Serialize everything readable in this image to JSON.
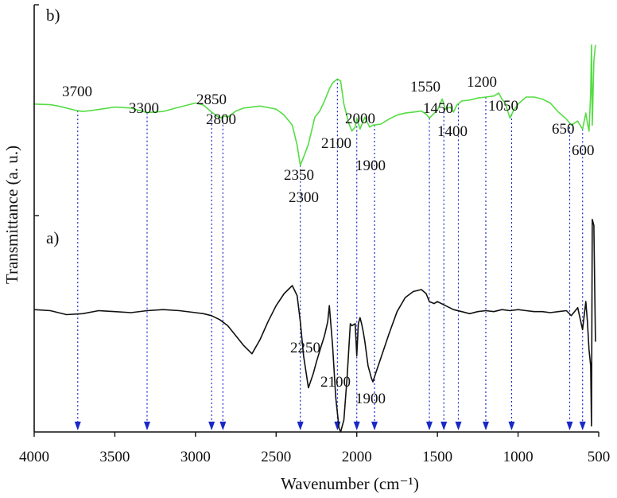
{
  "chart_data": {
    "type": "line",
    "xlabel": "Wavenumber (cm⁻¹)",
    "ylabel": "Transmittance (a. u.)",
    "xlim": [
      4000,
      500
    ],
    "x_ticks": [
      4000,
      3500,
      3000,
      2500,
      2000,
      1500,
      1000,
      500
    ],
    "grid": false,
    "legend": "none",
    "series": [
      {
        "name": "b)",
        "color": "#55dd44",
        "x": [
          4000,
          3900,
          3850,
          3800,
          3750,
          3700,
          3650,
          3600,
          3500,
          3400,
          3300,
          3200,
          3100,
          3000,
          2950,
          2900,
          2850,
          2820,
          2800,
          2750,
          2700,
          2600,
          2500,
          2450,
          2400,
          2370,
          2350,
          2330,
          2300,
          2260,
          2230,
          2200,
          2170,
          2150,
          2120,
          2100,
          2080,
          2050,
          2030,
          2010,
          2000,
          1980,
          1960,
          1950,
          1920,
          1900,
          1850,
          1800,
          1750,
          1700,
          1650,
          1600,
          1570,
          1550,
          1500,
          1470,
          1450,
          1420,
          1400,
          1380,
          1350,
          1300,
          1250,
          1200,
          1150,
          1120,
          1100,
          1080,
          1050,
          1030,
          1000,
          950,
          900,
          850,
          800,
          750,
          700,
          670,
          650,
          630,
          600,
          580,
          570,
          560,
          550,
          545,
          540,
          530,
          520
        ],
        "y": [
          49.5,
          49.8,
          50.5,
          51.5,
          52.5,
          53.2,
          52.8,
          52.2,
          51,
          51.5,
          53.8,
          53.2,
          51,
          49,
          50,
          53.5,
          56.5,
          55.5,
          56,
          53,
          51.5,
          50.5,
          52,
          55,
          60,
          70,
          80,
          76,
          69.5,
          56,
          53,
          48,
          42,
          39,
          37,
          38,
          49.5,
          59,
          63,
          61,
          56.5,
          62,
          58,
          56,
          61,
          60,
          59.5,
          57,
          55,
          54,
          53.5,
          53,
          54.5,
          56.5,
          52.5,
          47,
          52,
          51,
          53.5,
          50,
          48,
          47.5,
          46.5,
          46,
          45.5,
          44,
          47,
          49,
          56.5,
          53,
          49.5,
          46,
          46,
          47,
          49,
          53.5,
          57,
          60,
          59,
          58,
          62,
          54,
          59,
          63,
          44,
          20,
          60,
          28,
          20
        ]
      },
      {
        "name": "a)",
        "color": "#111111",
        "x": [
          4000,
          3900,
          3800,
          3700,
          3600,
          3500,
          3400,
          3300,
          3200,
          3100,
          3000,
          2950,
          2900,
          2850,
          2800,
          2750,
          2700,
          2650,
          2600,
          2550,
          2500,
          2450,
          2400,
          2370,
          2350,
          2330,
          2300,
          2270,
          2250,
          2220,
          2200,
          2180,
          2170,
          2150,
          2130,
          2110,
          2100,
          2080,
          2060,
          2040,
          2030,
          2010,
          2000,
          1990,
          1980,
          1970,
          1960,
          1950,
          1930,
          1910,
          1900,
          1880,
          1850,
          1800,
          1750,
          1700,
          1650,
          1600,
          1570,
          1550,
          1520,
          1500,
          1450,
          1400,
          1350,
          1300,
          1250,
          1200,
          1150,
          1100,
          1050,
          1000,
          950,
          900,
          850,
          800,
          750,
          700,
          670,
          650,
          630,
          600,
          580,
          570,
          560,
          550,
          545,
          540,
          530,
          520
        ],
        "y": [
          152,
          152.5,
          154.5,
          154,
          152.5,
          153,
          153.5,
          152.5,
          152,
          152.5,
          153.5,
          154,
          155,
          157,
          160,
          165,
          170,
          174,
          167,
          158,
          150,
          144,
          140,
          145,
          158,
          175,
          191,
          184,
          178,
          170,
          165,
          158,
          150,
          170,
          196,
          211,
          213,
          207,
          186,
          159,
          160,
          159,
          175,
          159,
          156,
          159,
          163,
          168,
          180,
          186,
          188,
          183,
          176,
          164,
          153,
          146,
          143,
          142,
          144,
          148,
          149,
          148,
          150,
          152,
          153,
          154,
          153,
          152.5,
          153,
          152,
          152.5,
          152,
          152.5,
          153,
          153,
          153.5,
          153,
          152.5,
          155,
          153,
          151,
          162,
          148,
          158,
          172,
          180,
          210,
          107,
          110,
          168
        ]
      }
    ],
    "annotations": {
      "series_labels": [
        "b)",
        "a)"
      ],
      "b_peaks": [
        "3700",
        "3300",
        "2850",
        "2800",
        "2350",
        "2300",
        "2100",
        "2000",
        "1900",
        "1550",
        "1450",
        "1400",
        "1200",
        "1050",
        "650",
        "600"
      ],
      "a_peaks": [
        "2250",
        "2100",
        "1900"
      ]
    },
    "marker_lines": [
      3730,
      3300,
      2900,
      2830,
      2350,
      2120,
      2000,
      1890,
      1550,
      1460,
      1370,
      1200,
      1040,
      680,
      600
    ],
    "marker_color": "#1a28c8"
  }
}
